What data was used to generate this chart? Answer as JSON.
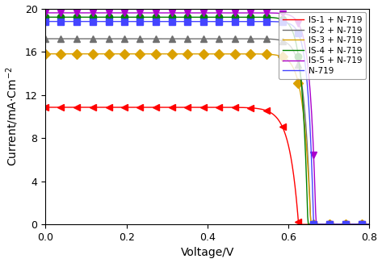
{
  "title": "",
  "xlabel": "Voltage/V",
  "ylabel": "Current/mA·Cm⁻²",
  "xlim": [
    0.0,
    0.8
  ],
  "ylim": [
    0.0,
    20.0
  ],
  "xticks": [
    0.0,
    0.2,
    0.4,
    0.6,
    0.8
  ],
  "yticks": [
    0,
    4,
    8,
    12,
    16,
    20
  ],
  "series": [
    {
      "label": "IS-1 + N-719",
      "color": "#FF0000",
      "marker": "<",
      "Jsc": 10.85,
      "Voc": 0.625,
      "n": 28.0
    },
    {
      "label": "IS-2 + N-719",
      "color": "#707070",
      "marker": "^",
      "Jsc": 17.2,
      "Voc": 0.655,
      "n": 42.0
    },
    {
      "label": "IS-3 + N-719",
      "color": "#DAA000",
      "marker": "D",
      "Jsc": 15.8,
      "Voc": 0.655,
      "n": 38.0
    },
    {
      "label": "IS-4 + N-719",
      "color": "#008000",
      "marker": "o",
      "Jsc": 19.2,
      "Voc": 0.648,
      "n": 46.0
    },
    {
      "label": "IS-5 + N-719",
      "color": "#AA00CC",
      "marker": "v",
      "Jsc": 19.6,
      "Voc": 0.668,
      "n": 46.0
    },
    {
      "label": "N-719",
      "color": "#4444FF",
      "marker": "s",
      "Jsc": 18.8,
      "Voc": 0.662,
      "n": 50.0
    }
  ],
  "n_markers": 22,
  "markersize": 6
}
